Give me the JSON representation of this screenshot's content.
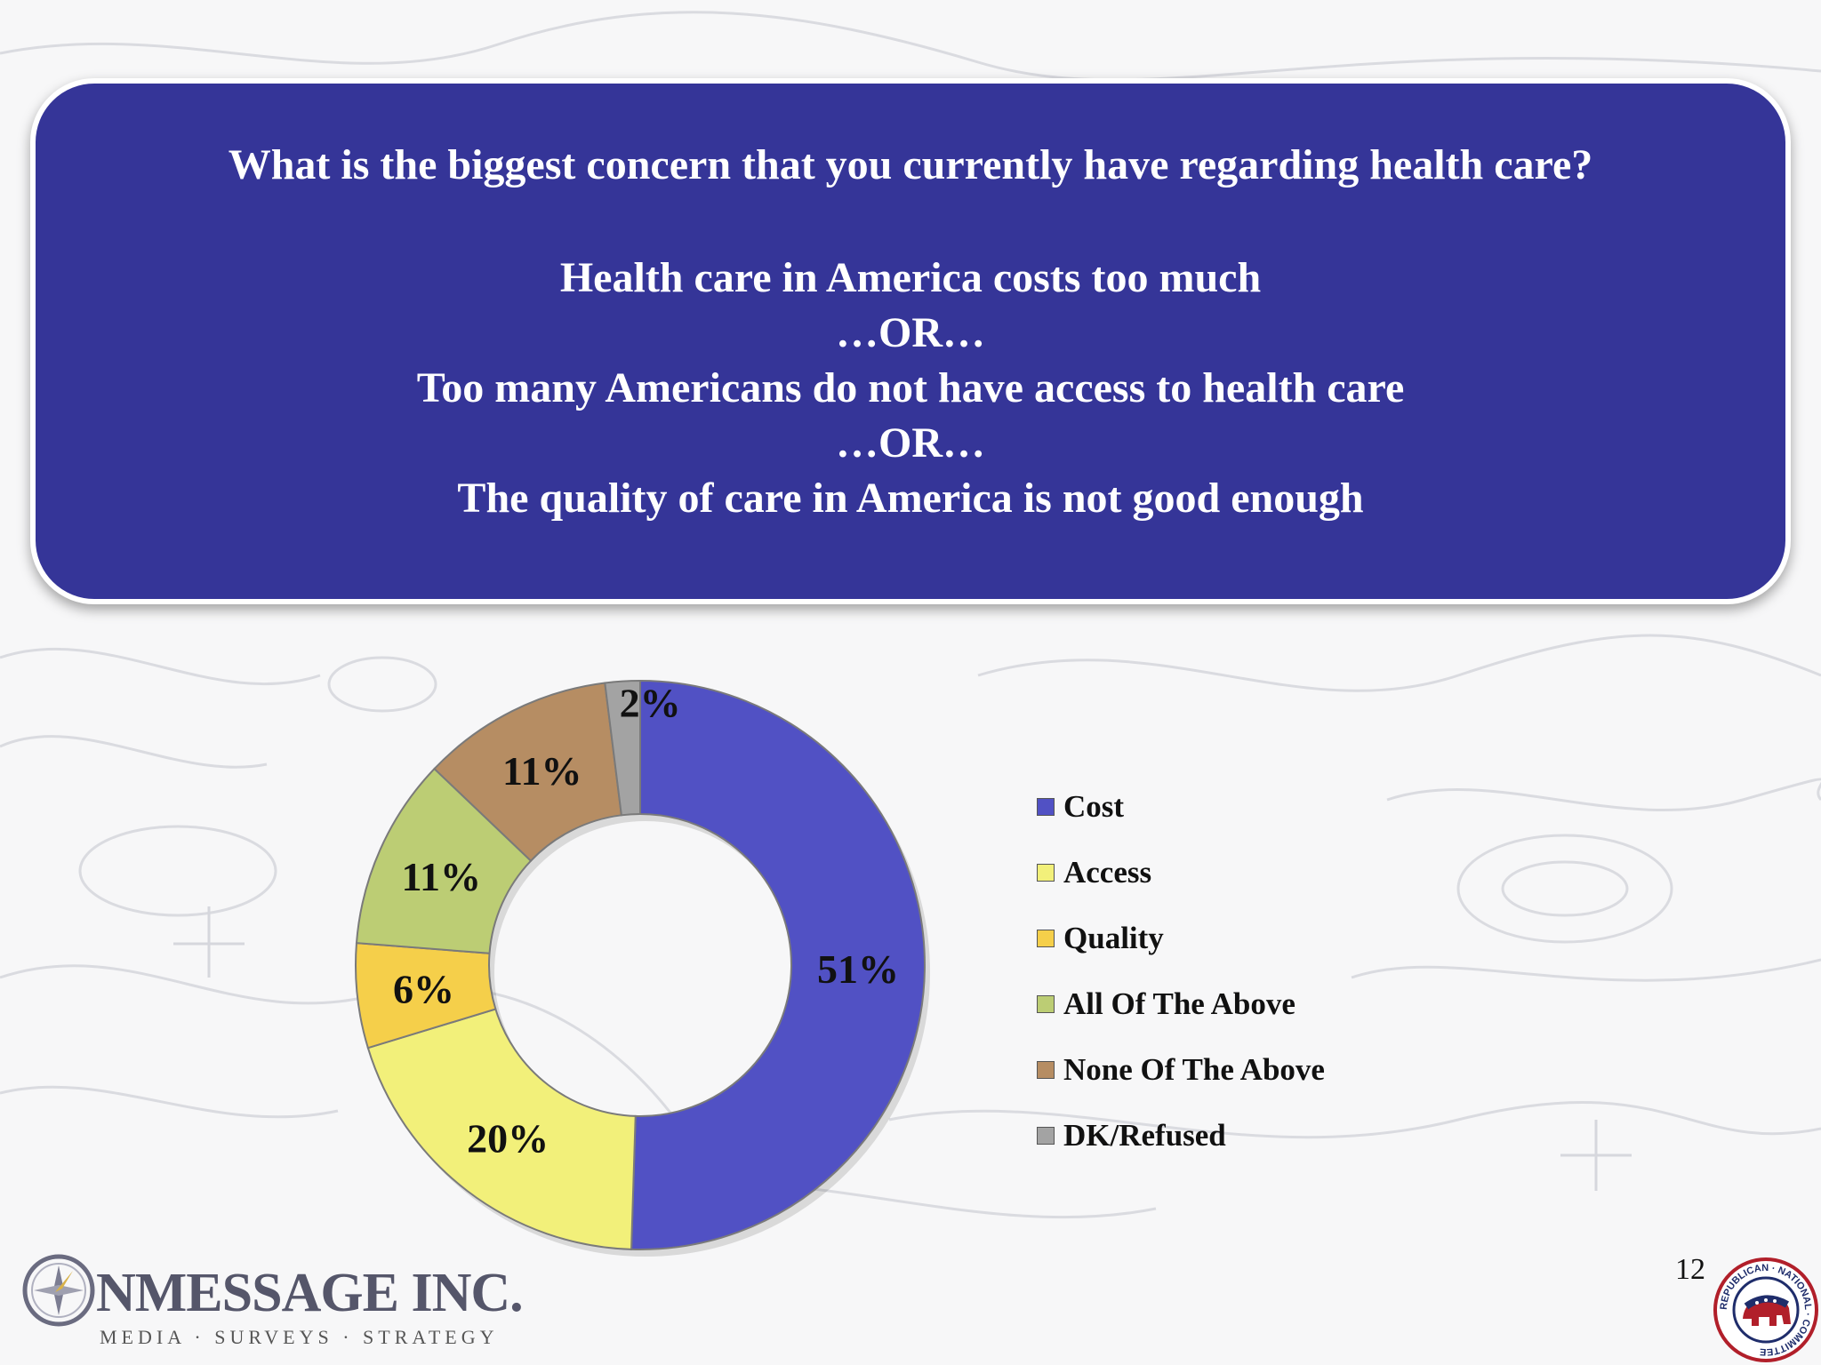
{
  "question": {
    "title": "What is the biggest concern that you currently have regarding health care?",
    "lines": [
      "Health care in America costs too much",
      "…OR…",
      "Too many Americans do not have access to health care",
      "…OR…",
      "The quality of care in America is not good enough"
    ]
  },
  "chart_data": {
    "type": "pie",
    "categories": [
      "Cost",
      "Access",
      "Quality",
      "All Of The Above",
      "None Of The Above",
      "DK/Refused"
    ],
    "values": [
      51,
      20,
      6,
      11,
      11,
      2
    ],
    "data_labels": [
      "51%",
      "20%",
      "6%",
      "11%",
      "11%",
      "2%"
    ],
    "colors": [
      "#5151c4",
      "#f2f07a",
      "#f5cf4a",
      "#bccd74",
      "#b68d63",
      "#a3a3a3"
    ],
    "style": "doughnut",
    "legend_position": "right"
  },
  "page_number": "12",
  "logo": {
    "name": "NMESSAGE INC.",
    "tagline": "MEDIA · SURVEYS · STRATEGY"
  },
  "seal": {
    "text": "REPUBLICAN · NATIONAL · COMMITTEE"
  }
}
